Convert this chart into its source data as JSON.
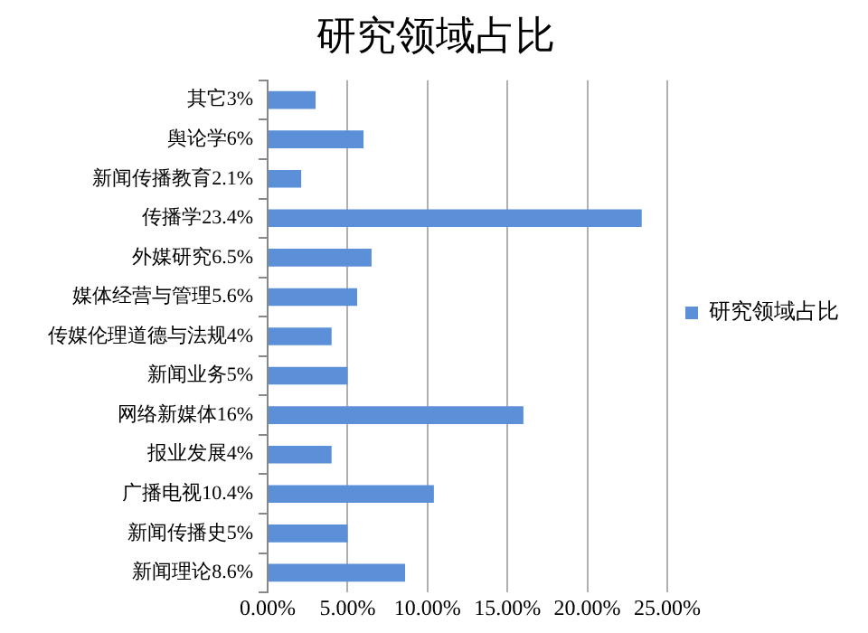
{
  "chart_data": {
    "type": "bar",
    "title": "研究领域占比",
    "orientation": "horizontal",
    "categories": [
      "其它3%",
      "舆论学6%",
      "新闻传播教育2.1%",
      "传播学23.4%",
      "外媒研究6.5%",
      "媒体经营与管理5.6%",
      "传媒伦理道德与法规4%",
      "新闻业务5%",
      "网络新媒体16%",
      "报业发展4%",
      "广播电视10.4%",
      "新闻传播史5%",
      "新闻理论8.6%"
    ],
    "series": [
      {
        "name": "研究领域占比",
        "color": "#5b8fd8",
        "values": [
          3,
          6,
          2.1,
          23.4,
          6.5,
          5.6,
          4,
          5,
          16,
          4,
          10.4,
          5,
          8.6
        ]
      }
    ],
    "xlim": [
      0,
      25
    ],
    "xticks": [
      {
        "value": 0,
        "label": "0.00%"
      },
      {
        "value": 5,
        "label": "5.00%"
      },
      {
        "value": 10,
        "label": "10.00%"
      },
      {
        "value": 15,
        "label": "15.00%"
      },
      {
        "value": 20,
        "label": "20.00%"
      },
      {
        "value": 25,
        "label": "25.00%"
      }
    ],
    "grid": "x",
    "legend": "right"
  }
}
